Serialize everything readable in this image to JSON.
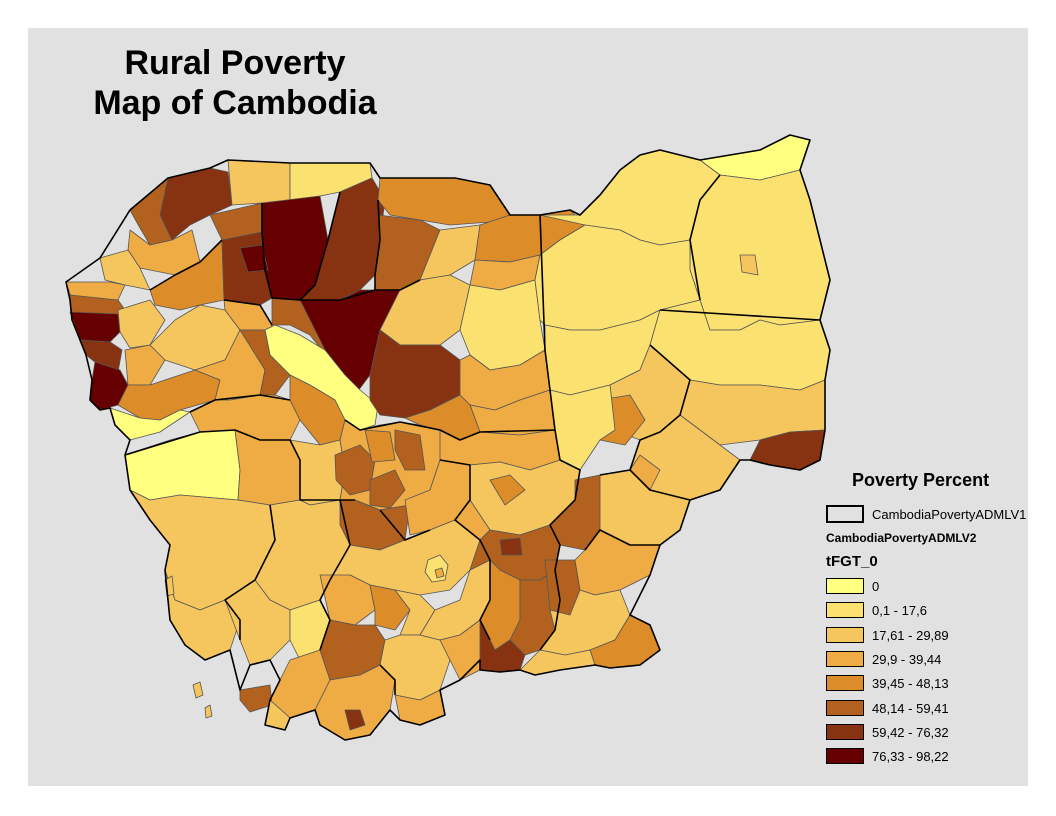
{
  "title_line1": "Rural Poverty",
  "title_line2": "Map of Cambodia",
  "legend": {
    "title": "Poverty Percent",
    "layer1": "CambodiaPovertyADMLV1",
    "layer2": "CambodiaPovertyADMLV2",
    "field": "tFGT_0",
    "classes": [
      {
        "label": "0",
        "color": "#ffff80"
      },
      {
        "label": "0,1 - 17,6",
        "color": "#fae170"
      },
      {
        "label": "17,61 - 29,89",
        "color": "#f6c65e"
      },
      {
        "label": "29,9 - 39,44",
        "color": "#efab44"
      },
      {
        "label": "39,45 - 48,13",
        "color": "#dd8c2a"
      },
      {
        "label": "48,14 - 59,41",
        "color": "#b2621e"
      },
      {
        "label": "59,42 - 76,32",
        "color": "#873210"
      },
      {
        "label": "76,33 - 98,22",
        "color": "#660000"
      }
    ]
  }
}
